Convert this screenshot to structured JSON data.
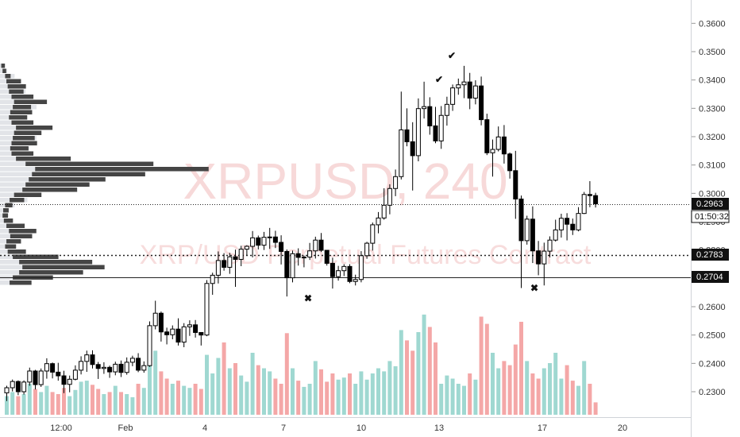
{
  "chart_data": {
    "type": "candlestick",
    "watermark": {
      "symbol": "XRPUSD, 240",
      "description": "XRP/USD Perpetual Futures Contract"
    },
    "y_axis": {
      "ticks": [
        "0.3600",
        "0.3500",
        "0.3400",
        "0.3300",
        "0.3200",
        "0.3100",
        "0.3000",
        "0.2900",
        "0.2800",
        "0.2700",
        "0.2600",
        "0.2500",
        "0.2400",
        "0.2300"
      ],
      "range": [
        0.2225,
        0.366
      ]
    },
    "x_axis": {
      "ticks": [
        "12:00",
        "Feb",
        "4",
        "7",
        "10",
        "13",
        "17",
        "20"
      ]
    },
    "price_labels": {
      "current": "0.2963",
      "countdown": "01:50:32",
      "level_1": "0.2783",
      "level_2": "0.2704"
    },
    "horizontal_lines": [
      0.2963,
      0.2783,
      0.2704
    ],
    "markers": [
      {
        "type": "check",
        "x": "Feb 13 early",
        "price": 0.339
      },
      {
        "type": "check",
        "x": "Feb 13",
        "price": 0.3475
      },
      {
        "type": "cross",
        "x": "Feb 8",
        "price": 0.2618
      },
      {
        "type": "cross",
        "x": "Feb 16",
        "price": 0.2655
      }
    ],
    "candles": [
      [
        0.2296,
        0.2321,
        0.2267,
        0.2314
      ],
      [
        0.2314,
        0.2343,
        0.2301,
        0.2336
      ],
      [
        0.2336,
        0.234,
        0.2288,
        0.23
      ],
      [
        0.23,
        0.234,
        0.229,
        0.2334
      ],
      [
        0.2334,
        0.2385,
        0.2321,
        0.2373
      ],
      [
        0.2373,
        0.2377,
        0.2308,
        0.2325
      ],
      [
        0.2325,
        0.2382,
        0.2317,
        0.2373
      ],
      [
        0.2373,
        0.2418,
        0.2346,
        0.2399
      ],
      [
        0.2399,
        0.2403,
        0.2347,
        0.2369
      ],
      [
        0.2369,
        0.2402,
        0.2339,
        0.2356
      ],
      [
        0.2356,
        0.2374,
        0.2295,
        0.2326
      ],
      [
        0.2326,
        0.2357,
        0.2298,
        0.2344
      ],
      [
        0.2344,
        0.2393,
        0.234,
        0.2376
      ],
      [
        0.2376,
        0.2425,
        0.2361,
        0.2407
      ],
      [
        0.2407,
        0.2445,
        0.237,
        0.243
      ],
      [
        0.243,
        0.2446,
        0.2382,
        0.2396
      ],
      [
        0.2396,
        0.2405,
        0.2345,
        0.2382
      ],
      [
        0.2382,
        0.2404,
        0.2363,
        0.2386
      ],
      [
        0.2386,
        0.2392,
        0.2349,
        0.237
      ],
      [
        0.237,
        0.2406,
        0.2358,
        0.2397
      ],
      [
        0.2397,
        0.241,
        0.2352,
        0.2368
      ],
      [
        0.2368,
        0.2421,
        0.236,
        0.2404
      ],
      [
        0.2404,
        0.2427,
        0.239,
        0.2418
      ],
      [
        0.2418,
        0.2436,
        0.2369,
        0.2376
      ],
      [
        0.2376,
        0.2407,
        0.2367,
        0.2392
      ],
      [
        0.2392,
        0.2548,
        0.2388,
        0.2533
      ],
      [
        0.2533,
        0.2621,
        0.252,
        0.2577
      ],
      [
        0.2577,
        0.2583,
        0.2477,
        0.2511
      ],
      [
        0.2511,
        0.2526,
        0.2467,
        0.2501
      ],
      [
        0.2501,
        0.2534,
        0.2485,
        0.2521
      ],
      [
        0.2521,
        0.2559,
        0.2463,
        0.2475
      ],
      [
        0.2475,
        0.2542,
        0.2457,
        0.2529
      ],
      [
        0.2529,
        0.2552,
        0.2497,
        0.2536
      ],
      [
        0.2536,
        0.2553,
        0.2491,
        0.2509
      ],
      [
        0.2509,
        0.251,
        0.2463,
        0.25
      ],
      [
        0.25,
        0.2694,
        0.2496,
        0.2682
      ],
      [
        0.2682,
        0.272,
        0.2642,
        0.2711
      ],
      [
        0.2711,
        0.2795,
        0.2682,
        0.2763
      ],
      [
        0.2763,
        0.2789,
        0.2727,
        0.2739
      ],
      [
        0.2739,
        0.279,
        0.2716,
        0.2776
      ],
      [
        0.2776,
        0.2801,
        0.267,
        0.2767
      ],
      [
        0.2767,
        0.2815,
        0.2743,
        0.2803
      ],
      [
        0.2803,
        0.2817,
        0.2781,
        0.2813
      ],
      [
        0.2813,
        0.2867,
        0.2774,
        0.2843
      ],
      [
        0.2843,
        0.2851,
        0.2802,
        0.2817
      ],
      [
        0.2817,
        0.2864,
        0.28,
        0.2845
      ],
      [
        0.2845,
        0.2878,
        0.2804,
        0.2846
      ],
      [
        0.2846,
        0.2868,
        0.2807,
        0.2827
      ],
      [
        0.2827,
        0.2852,
        0.2749,
        0.2795
      ],
      [
        0.2795,
        0.2802,
        0.2636,
        0.2702
      ],
      [
        0.2702,
        0.2798,
        0.2686,
        0.2787
      ],
      [
        0.2787,
        0.2806,
        0.2745,
        0.2774
      ],
      [
        0.2774,
        0.2781,
        0.2739,
        0.2775
      ],
      [
        0.2775,
        0.2825,
        0.2765,
        0.2797
      ],
      [
        0.2797,
        0.2847,
        0.277,
        0.2835
      ],
      [
        0.2835,
        0.286,
        0.2793,
        0.2799
      ],
      [
        0.2799,
        0.2799,
        0.2745,
        0.2753
      ],
      [
        0.2753,
        0.2773,
        0.2664,
        0.2706
      ],
      [
        0.2706,
        0.2744,
        0.2692,
        0.2727
      ],
      [
        0.2727,
        0.275,
        0.2708,
        0.2742
      ],
      [
        0.2742,
        0.275,
        0.2683,
        0.2689
      ],
      [
        0.2689,
        0.2713,
        0.2675,
        0.2696
      ],
      [
        0.2696,
        0.2796,
        0.2686,
        0.278
      ],
      [
        0.278,
        0.2829,
        0.2769,
        0.2824
      ],
      [
        0.2824,
        0.2897,
        0.2798,
        0.2889
      ],
      [
        0.2889,
        0.2934,
        0.2859,
        0.2913
      ],
      [
        0.2913,
        0.3018,
        0.2907,
        0.2958
      ],
      [
        0.2958,
        0.3032,
        0.2926,
        0.3017
      ],
      [
        0.3017,
        0.3084,
        0.299,
        0.3059
      ],
      [
        0.3059,
        0.3359,
        0.3049,
        0.3224
      ],
      [
        0.3224,
        0.33,
        0.3166,
        0.3182
      ],
      [
        0.3182,
        0.3251,
        0.301,
        0.3133
      ],
      [
        0.3133,
        0.3335,
        0.3113,
        0.3299
      ],
      [
        0.3299,
        0.3394,
        0.3264,
        0.3306
      ],
      [
        0.3306,
        0.3339,
        0.3207,
        0.3238
      ],
      [
        0.3238,
        0.3305,
        0.3177,
        0.3185
      ],
      [
        0.3185,
        0.3308,
        0.3157,
        0.3275
      ],
      [
        0.3275,
        0.3341,
        0.3239,
        0.3314
      ],
      [
        0.3314,
        0.3384,
        0.3291,
        0.3372
      ],
      [
        0.3372,
        0.3405,
        0.3348,
        0.3383
      ],
      [
        0.3383,
        0.345,
        0.3336,
        0.3393
      ],
      [
        0.3393,
        0.3425,
        0.3297,
        0.3336
      ],
      [
        0.3336,
        0.3399,
        0.3314,
        0.3379
      ],
      [
        0.3379,
        0.3412,
        0.324,
        0.326
      ],
      [
        0.326,
        0.3281,
        0.3135,
        0.3143
      ],
      [
        0.3143,
        0.319,
        0.3059,
        0.3155
      ],
      [
        0.3155,
        0.3236,
        0.3148,
        0.3199
      ],
      [
        0.3199,
        0.3241,
        0.3105,
        0.3139
      ],
      [
        0.3139,
        0.3144,
        0.3052,
        0.308
      ],
      [
        0.308,
        0.315,
        0.291,
        0.298
      ],
      [
        0.298,
        0.2992,
        0.2666,
        0.2833
      ],
      [
        0.2833,
        0.2921,
        0.2819,
        0.2909
      ],
      [
        0.2909,
        0.2954,
        0.2754,
        0.2797
      ],
      [
        0.2797,
        0.2832,
        0.2711,
        0.2751
      ],
      [
        0.2751,
        0.2826,
        0.2675,
        0.2796
      ],
      [
        0.2796,
        0.2848,
        0.2774,
        0.2835
      ],
      [
        0.2835,
        0.2907,
        0.283,
        0.2871
      ],
      [
        0.2871,
        0.2928,
        0.2844,
        0.2912
      ],
      [
        0.2912,
        0.293,
        0.2834,
        0.2891
      ],
      [
        0.2891,
        0.2911,
        0.2853,
        0.2871
      ],
      [
        0.2871,
        0.2951,
        0.2866,
        0.2929
      ],
      [
        0.2929,
        0.3005,
        0.2927,
        0.2996
      ],
      [
        0.2996,
        0.3043,
        0.2951,
        0.2992
      ],
      [
        0.2992,
        0.3002,
        0.295,
        0.2963
      ]
    ],
    "volumes": [
      0.18,
      0.22,
      0.18,
      0.2,
      0.3,
      0.25,
      0.22,
      0.28,
      0.22,
      0.2,
      0.26,
      0.18,
      0.24,
      0.32,
      0.33,
      0.29,
      0.25,
      0.2,
      0.22,
      0.28,
      0.22,
      0.2,
      0.17,
      0.3,
      0.26,
      0.55,
      0.62,
      0.42,
      0.35,
      0.3,
      0.33,
      0.28,
      0.26,
      0.3,
      0.25,
      0.58,
      0.4,
      0.55,
      0.7,
      0.45,
      0.5,
      0.38,
      0.32,
      0.6,
      0.48,
      0.45,
      0.42,
      0.35,
      0.3,
      0.79,
      0.45,
      0.33,
      0.27,
      0.3,
      0.52,
      0.44,
      0.32,
      0.4,
      0.34,
      0.36,
      0.4,
      0.3,
      0.42,
      0.34,
      0.4,
      0.45,
      0.42,
      0.52,
      0.47,
      0.82,
      0.72,
      0.62,
      0.8,
      0.97,
      0.85,
      0.7,
      0.3,
      0.38,
      0.35,
      0.3,
      0.28,
      0.4,
      0.34,
      0.95,
      0.88,
      0.6,
      0.45,
      0.52,
      0.48,
      0.68,
      0.9,
      0.52,
      0.4,
      0.35,
      0.45,
      0.5,
      0.6,
      0.35,
      0.48,
      0.33,
      0.28,
      0.52,
      0.3,
      0.12
    ],
    "volume_profile": [
      [
        0.02,
        0.02
      ],
      [
        0.04,
        0.02
      ],
      [
        0.08,
        0.03
      ],
      [
        0.1,
        0.08
      ],
      [
        0.12,
        0.1
      ],
      [
        0.14,
        0.08
      ],
      [
        0.18,
        0.12
      ],
      [
        0.22,
        0.18
      ],
      [
        0.2,
        0.1
      ],
      [
        0.16,
        0.12
      ],
      [
        0.14,
        0.1
      ],
      [
        0.18,
        0.12
      ],
      [
        0.25,
        0.2
      ],
      [
        0.22,
        0.15
      ],
      [
        0.2,
        0.12
      ],
      [
        0.18,
        0.14
      ],
      [
        0.16,
        0.1
      ],
      [
        0.18,
        0.12
      ],
      [
        0.25,
        0.3
      ],
      [
        0.4,
        0.7
      ],
      [
        0.55,
        0.95
      ],
      [
        0.5,
        0.62
      ],
      [
        0.45,
        0.42
      ],
      [
        0.4,
        0.35
      ],
      [
        0.35,
        0.3
      ],
      [
        0.22,
        0.15
      ],
      [
        0.15,
        0.08
      ],
      [
        0.08,
        0.04
      ],
      [
        0.05,
        0.03
      ],
      [
        0.04,
        0.03
      ],
      [
        0.06,
        0.05
      ],
      [
        0.1,
        0.1
      ],
      [
        0.14,
        0.15
      ],
      [
        0.16,
        0.12
      ],
      [
        0.1,
        0.08
      ],
      [
        0.08,
        0.06
      ],
      [
        0.12,
        0.1
      ],
      [
        0.2,
        0.25
      ],
      [
        0.3,
        0.4
      ],
      [
        0.35,
        0.45
      ],
      [
        0.3,
        0.35
      ],
      [
        0.2,
        0.22
      ],
      [
        0.15,
        0.12
      ]
    ]
  }
}
